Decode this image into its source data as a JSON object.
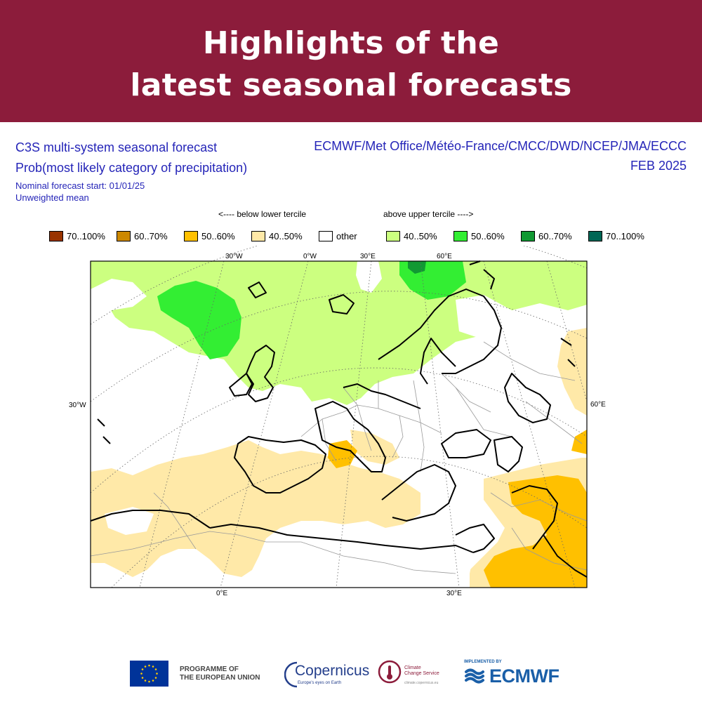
{
  "banner": {
    "line1": "Highlights of the",
    "line2": "latest seasonal forecasts"
  },
  "forecast": {
    "title": "C3S multi-system seasonal forecast",
    "subtitle": "Prob(most likely category of precipitation)",
    "start": "Nominal forecast start: 01/01/25",
    "mean": "Unweighted mean",
    "systems": "ECMWF/Met Office/Météo-France/CMCC/DWD/NCEP/JMA/ECCC",
    "month": "FEB 2025"
  },
  "tercile": {
    "below": "<---- below lower tercile",
    "above": "above upper tercile ---->"
  },
  "legend": [
    {
      "label": "70..100%",
      "color": "#993300"
    },
    {
      "label": "60..70%",
      "color": "#cc8800"
    },
    {
      "label": "50..60%",
      "color": "#ffc000"
    },
    {
      "label": "40..50%",
      "color": "#ffe9a8"
    },
    {
      "label": "other",
      "color": "#ffffff"
    },
    {
      "label": "40..50%",
      "color": "#ccff80"
    },
    {
      "label": "50..60%",
      "color": "#33ee33"
    },
    {
      "label": "60..70%",
      "color": "#119933"
    },
    {
      "label": "70..100%",
      "color": "#006655"
    }
  ],
  "ticks": {
    "top": [
      "30°W",
      "0°W",
      "30°E",
      "60°E"
    ],
    "left": "30°W",
    "right": "60°E",
    "bottom": [
      "0°E",
      "30°E"
    ]
  },
  "footer": {
    "programme_line1": "PROGRAMME OF",
    "programme_line2": "THE EUROPEAN UNION",
    "copernicus": "Copernicus",
    "copernicus_tag": "Europe's eyes on Earth",
    "c3s_line1": "Climate",
    "c3s_line2": "Change Service",
    "c3s_url": "climate.copernicus.eu",
    "implemented_by": "IMPLEMENTED BY",
    "ecmwf": "ECMWF"
  }
}
